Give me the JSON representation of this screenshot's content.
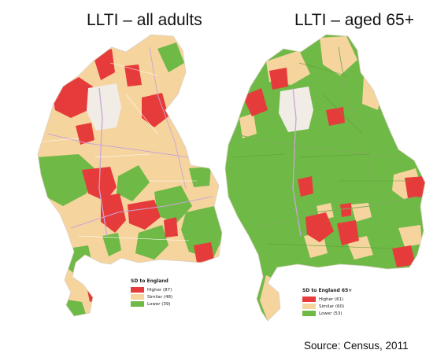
{
  "colors": {
    "higher": "#e63b3b",
    "similar": "#f6d49e",
    "lower": "#6fb946",
    "road": "#c9a6d8",
    "urban": "#f1ece6",
    "border": "#ffffff"
  },
  "maps": [
    {
      "title": "LLTI – all adults",
      "legend": {
        "title": "SD to England",
        "items": [
          {
            "label": "Higher (87)",
            "class": "higher"
          },
          {
            "label": "Similar (48)",
            "class": "similar"
          },
          {
            "label": "Lower (39)",
            "class": "lower"
          }
        ]
      }
    },
    {
      "title": "LLTI – aged 65+",
      "legend": {
        "title": "SD to England 65+",
        "items": [
          {
            "label": "Higher (61)",
            "class": "higher"
          },
          {
            "label": "Similar (60)",
            "class": "similar"
          },
          {
            "label": "Lower (53)",
            "class": "lower"
          }
        ]
      }
    }
  ],
  "source": "Source:  Census, 2011"
}
